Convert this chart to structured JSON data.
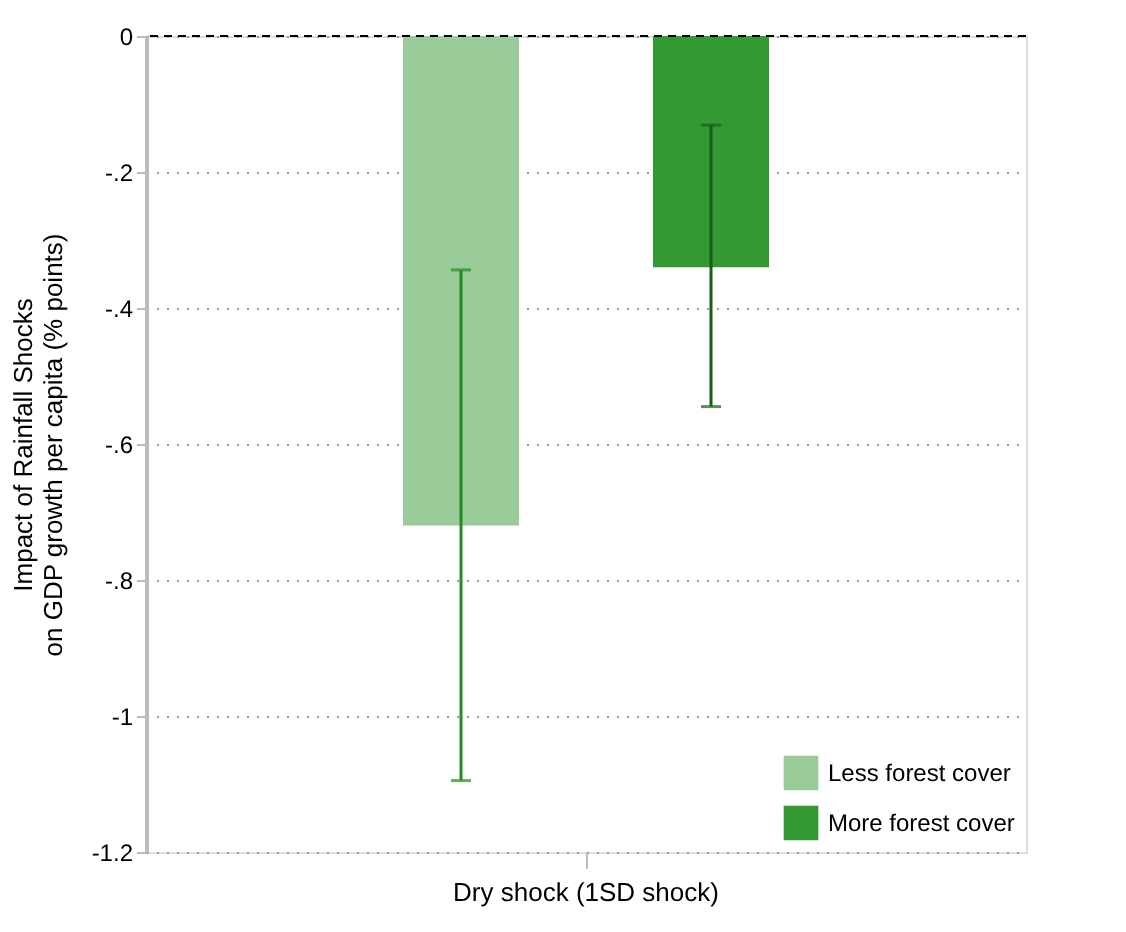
{
  "chart_data": {
    "type": "bar",
    "categories": [
      "Dry shock (1SD shock)"
    ],
    "series": [
      {
        "name": "Less forest cover",
        "color": "#99cc99",
        "values": [
          -0.72
        ],
        "errors": [
          [
            -1.095,
            -0.344
          ]
        ]
      },
      {
        "name": "More forest cover",
        "color": "#339933",
        "values": [
          -0.34
        ],
        "errors": [
          [
            -0.545,
            -0.131
          ]
        ]
      }
    ],
    "ylabel": "Impact of Rainfall Shocks\non GDP growth per capita (% points)",
    "ylim": [
      -1.2,
      0
    ],
    "yticks": [
      0,
      {
        "value": -0.2,
        "label": "-.2"
      },
      {
        "value": -0.4,
        "label": "-.4"
      },
      {
        "value": -0.6,
        "label": "-.6"
      },
      {
        "value": -0.8,
        "label": "-.8"
      },
      -1,
      -1.2
    ],
    "ref_lines": [
      {
        "axis": "y",
        "value": 0,
        "color": "#000000",
        "line_style": "dashed"
      }
    ],
    "grid": "y",
    "legend": "bottom right"
  }
}
